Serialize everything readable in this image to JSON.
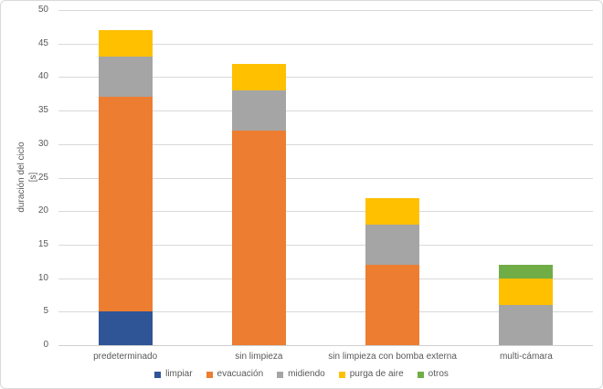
{
  "window": {
    "background": "#FFFFFF",
    "border_color": "#D9D9D9"
  },
  "style": {
    "gridline_color": "#D9D9D9",
    "axis_line_color": "#D0D0D0",
    "text_color": "#595959"
  },
  "chart_data": {
    "type": "bar",
    "stacked": true,
    "title": "",
    "xlabel": "",
    "ylabel": "duración del ciclo [s]",
    "ylabel_lines": [
      "duración del ciclo",
      "[s]"
    ],
    "ylim": [
      0,
      50
    ],
    "ytick_step": 5,
    "ytick_labels": [
      "0",
      "5",
      "10",
      "15",
      "20",
      "25",
      "30",
      "35",
      "40",
      "45",
      "50"
    ],
    "grid": true,
    "legend_position": "bottom",
    "categories": [
      "predeterminado",
      "sin limpieza",
      "sin limpieza con bomba externa",
      "multi-cámara"
    ],
    "series": [
      {
        "name": "limpiar",
        "color": "#2F5597",
        "values": [
          5,
          0,
          0,
          0
        ]
      },
      {
        "name": "evacuación",
        "color": "#ED7D31",
        "values": [
          32,
          32,
          12,
          0
        ]
      },
      {
        "name": "midiendo",
        "color": "#A5A5A5",
        "values": [
          6,
          6,
          6,
          6
        ]
      },
      {
        "name": "purga de aire",
        "color": "#FFC000",
        "values": [
          4,
          4,
          4,
          4
        ]
      },
      {
        "name": "otros",
        "color": "#70AD47",
        "values": [
          0,
          0,
          0,
          2
        ]
      }
    ],
    "totals": [
      47,
      42,
      22,
      12
    ]
  }
}
